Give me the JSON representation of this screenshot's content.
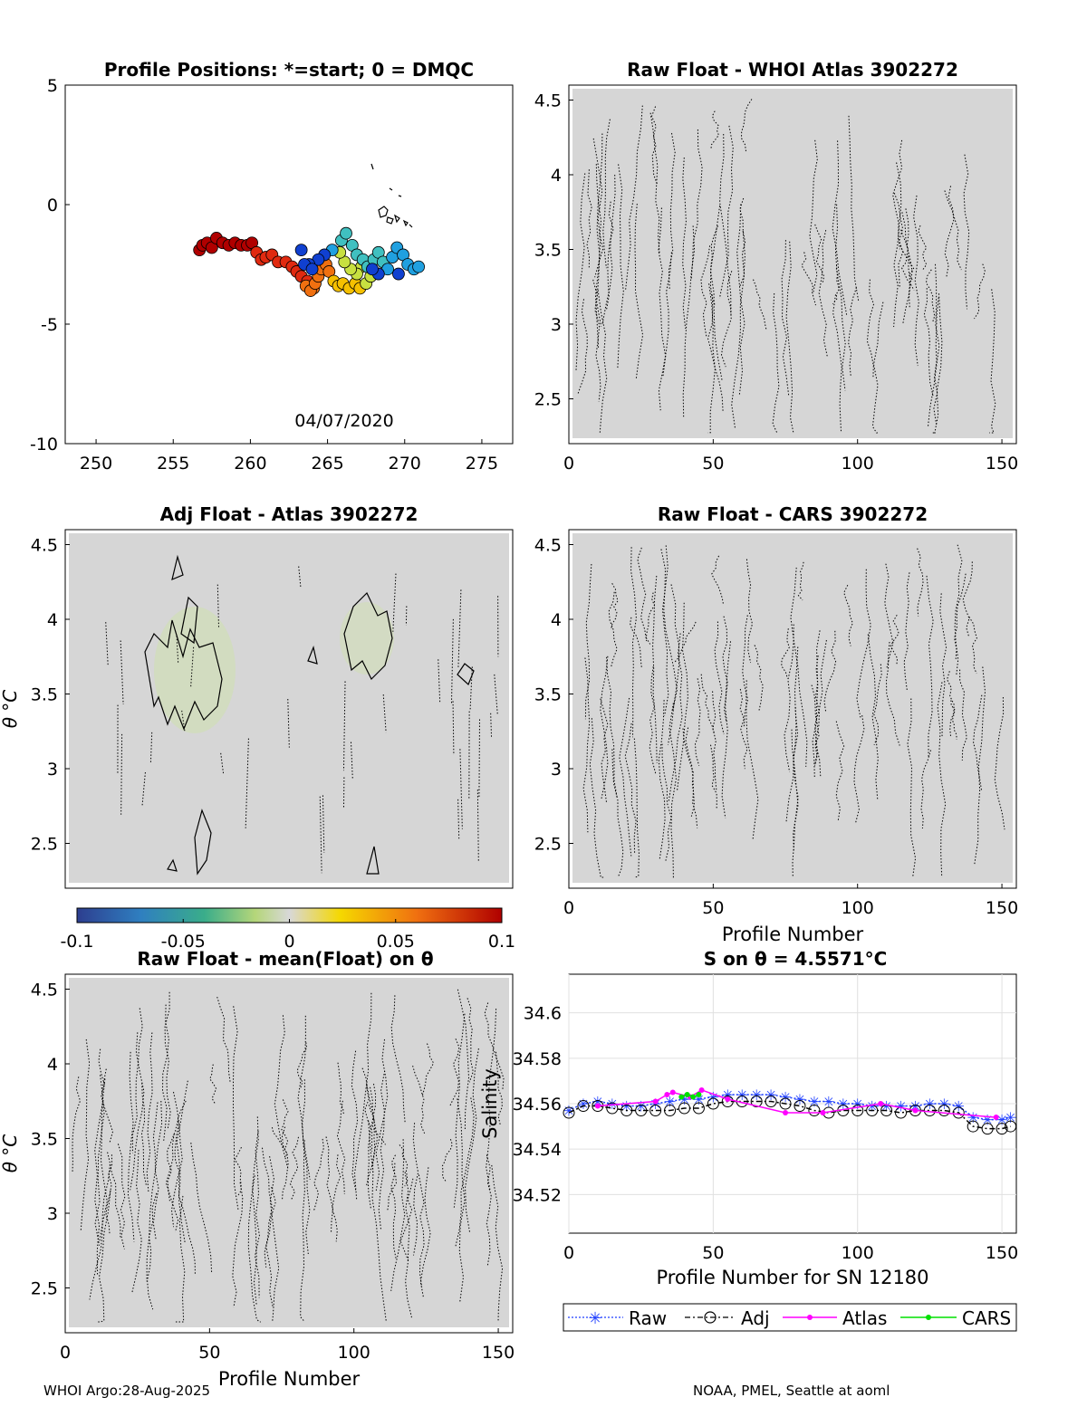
{
  "colors": {
    "panel_bg": "#d6d6d6",
    "contour": "#000000",
    "raw": "#1f3fff",
    "adj": "#000000",
    "atlas": "#ff00ff",
    "cars": "#00e000"
  },
  "footer": {
    "left": "WHOI Argo:28-Aug-2025",
    "right": "NOAA, PMEL, Seattle at aoml"
  },
  "colorbar": {
    "ticks": [
      "-0.1",
      "-0.05",
      "0",
      "0.05",
      "0.1"
    ],
    "range": [
      -0.1,
      0.1
    ]
  },
  "chart_data": [
    {
      "id": "positions",
      "type": "scatter",
      "title": "Profile Positions: *=start; 0 = DMQC",
      "annotation": "04/07/2020",
      "xlim": [
        248,
        277
      ],
      "ylim": [
        -10,
        5
      ],
      "xticks": [
        "250",
        "255",
        "260",
        "265",
        "270",
        "275"
      ],
      "yticks": [
        "5",
        "0",
        "-5",
        "-10"
      ],
      "points": [
        [
          256.7,
          -1.9
        ],
        [
          256.9,
          -1.7
        ],
        [
          257.2,
          -1.6
        ],
        [
          257.5,
          -1.8
        ],
        [
          257.8,
          -1.4
        ],
        [
          258.2,
          -1.6
        ],
        [
          258.6,
          -1.7
        ],
        [
          259.0,
          -1.6
        ],
        [
          259.4,
          -1.7
        ],
        [
          259.8,
          -1.7
        ],
        [
          260.1,
          -1.6
        ],
        [
          260.4,
          -2.0
        ],
        [
          260.7,
          -2.3
        ],
        [
          261.0,
          -2.2
        ],
        [
          261.4,
          -2.1
        ],
        [
          261.8,
          -2.4
        ],
        [
          262.3,
          -2.4
        ],
        [
          262.7,
          -2.6
        ],
        [
          263.0,
          -2.8
        ],
        [
          263.3,
          -3.0
        ],
        [
          263.7,
          -3.2
        ],
        [
          264.1,
          -3.5
        ],
        [
          263.6,
          -3.4
        ],
        [
          263.9,
          -3.6
        ],
        [
          264.2,
          -3.3
        ],
        [
          264.4,
          -3.0
        ],
        [
          264.6,
          -2.7
        ],
        [
          264.9,
          -2.5
        ],
        [
          265.1,
          -2.8
        ],
        [
          265.4,
          -3.2
        ],
        [
          265.7,
          -3.4
        ],
        [
          266.0,
          -3.3
        ],
        [
          266.4,
          -3.5
        ],
        [
          266.8,
          -3.3
        ],
        [
          267.1,
          -3.5
        ],
        [
          267.5,
          -3.3
        ],
        [
          267.8,
          -3.0
        ],
        [
          267.2,
          -2.6
        ],
        [
          266.9,
          -2.9
        ],
        [
          266.5,
          -2.7
        ],
        [
          266.1,
          -2.4
        ],
        [
          265.8,
          -2.0
        ],
        [
          265.9,
          -1.5
        ],
        [
          266.2,
          -1.2
        ],
        [
          266.6,
          -1.7
        ],
        [
          266.9,
          -2.1
        ],
        [
          267.3,
          -2.3
        ],
        [
          267.6,
          -2.6
        ],
        [
          268.0,
          -2.3
        ],
        [
          268.3,
          -2.0
        ],
        [
          268.6,
          -2.4
        ],
        [
          268.9,
          -2.7
        ],
        [
          269.2,
          -2.2
        ],
        [
          269.5,
          -1.8
        ],
        [
          269.9,
          -2.1
        ],
        [
          270.2,
          -2.5
        ],
        [
          270.6,
          -2.7
        ],
        [
          270.9,
          -2.6
        ],
        [
          265.3,
          -1.9
        ],
        [
          264.8,
          -2.1
        ],
        [
          264.4,
          -2.3
        ],
        [
          263.8,
          -2.5
        ],
        [
          263.3,
          -1.9
        ],
        [
          263.5,
          -2.5
        ],
        [
          264.0,
          -2.7
        ],
        [
          268.3,
          -2.9
        ],
        [
          267.9,
          -2.7
        ],
        [
          269.6,
          -2.9
        ]
      ]
    },
    {
      "id": "raw_atlas",
      "type": "heatmap",
      "title": "Raw Float - WHOI Atlas  3902272",
      "xlim": [
        0,
        155
      ],
      "ylim": [
        2.2,
        4.6
      ],
      "xticks": [
        "0",
        "50",
        "100",
        "150"
      ],
      "yticks": [
        "4.5",
        "4",
        "3.5",
        "3",
        "2.5"
      ]
    },
    {
      "id": "adj_atlas",
      "type": "heatmap",
      "title": "Adj Float - Atlas  3902272",
      "ylabel": "θ °C",
      "ylim": [
        2.2,
        4.6
      ],
      "yticks": [
        "4.5",
        "4",
        "3.5",
        "3",
        "2.5"
      ]
    },
    {
      "id": "raw_cars",
      "type": "heatmap",
      "title": "Raw Float - CARS  3902272",
      "xlabel": "Profile Number",
      "xlim": [
        0,
        155
      ],
      "ylim": [
        2.2,
        4.6
      ],
      "xticks": [
        "0",
        "50",
        "100",
        "150"
      ],
      "yticks": [
        "4.5",
        "4",
        "3.5",
        "3",
        "2.5"
      ]
    },
    {
      "id": "raw_mean",
      "type": "heatmap",
      "title": "Raw Float - mean(Float) on θ",
      "xlabel": "Profile Number",
      "ylabel": "θ °C",
      "xlim": [
        0,
        155
      ],
      "ylim": [
        2.2,
        4.6
      ],
      "xticks": [
        "0",
        "50",
        "100",
        "150"
      ],
      "yticks": [
        "4.5",
        "4",
        "3.5",
        "3",
        "2.5"
      ]
    },
    {
      "id": "salinity",
      "type": "line",
      "title": "S on θ = 4.5571°C",
      "xlabel": "Profile Number for SN 12180",
      "ylabel": "Salinity",
      "xlim": [
        0,
        155
      ],
      "ylim": [
        34.503,
        34.617
      ],
      "xticks": [
        "0",
        "50",
        "100",
        "150"
      ],
      "yticks": [
        "34.6",
        "34.58",
        "34.56",
        "34.54",
        "34.52"
      ],
      "legend": [
        "Raw",
        "Adj",
        "Atlas",
        "CARS"
      ],
      "series": [
        {
          "name": "Raw",
          "x": [
            0,
            5,
            10,
            15,
            20,
            25,
            30,
            35,
            40,
            45,
            50,
            55,
            60,
            65,
            70,
            75,
            80,
            85,
            90,
            95,
            100,
            105,
            110,
            115,
            120,
            125,
            130,
            135,
            140,
            145,
            150,
            153
          ],
          "values": [
            34.557,
            34.56,
            34.561,
            34.56,
            34.559,
            34.559,
            34.56,
            34.561,
            34.562,
            34.562,
            34.563,
            34.564,
            34.564,
            34.564,
            34.564,
            34.563,
            34.562,
            34.561,
            34.561,
            34.56,
            34.56,
            34.559,
            34.559,
            34.559,
            34.559,
            34.56,
            34.56,
            34.559,
            34.554,
            34.553,
            34.553,
            34.554
          ]
        },
        {
          "name": "Adj",
          "x": [
            0,
            5,
            10,
            15,
            20,
            25,
            30,
            35,
            40,
            45,
            50,
            55,
            60,
            65,
            70,
            75,
            80,
            85,
            90,
            95,
            100,
            105,
            110,
            115,
            120,
            125,
            130,
            135,
            140,
            145,
            150,
            153
          ],
          "values": [
            34.556,
            34.559,
            34.559,
            34.558,
            34.557,
            34.557,
            34.557,
            34.557,
            34.558,
            34.558,
            34.56,
            34.561,
            34.561,
            34.561,
            34.561,
            34.56,
            34.559,
            34.557,
            34.556,
            34.557,
            34.557,
            34.557,
            34.557,
            34.556,
            34.557,
            34.557,
            34.557,
            34.556,
            34.55,
            34.549,
            34.549,
            34.55
          ]
        },
        {
          "name": "Atlas",
          "x": [
            10,
            30,
            34,
            36,
            42,
            46,
            55,
            75,
            88,
            108,
            120,
            148
          ],
          "values": [
            34.559,
            34.561,
            34.564,
            34.565,
            34.563,
            34.566,
            34.562,
            34.556,
            34.556,
            34.56,
            34.557,
            34.554
          ]
        },
        {
          "name": "CARS",
          "x": [
            39,
            41,
            43,
            45
          ],
          "values": [
            34.563,
            34.564,
            34.563,
            34.564
          ]
        }
      ]
    }
  ]
}
